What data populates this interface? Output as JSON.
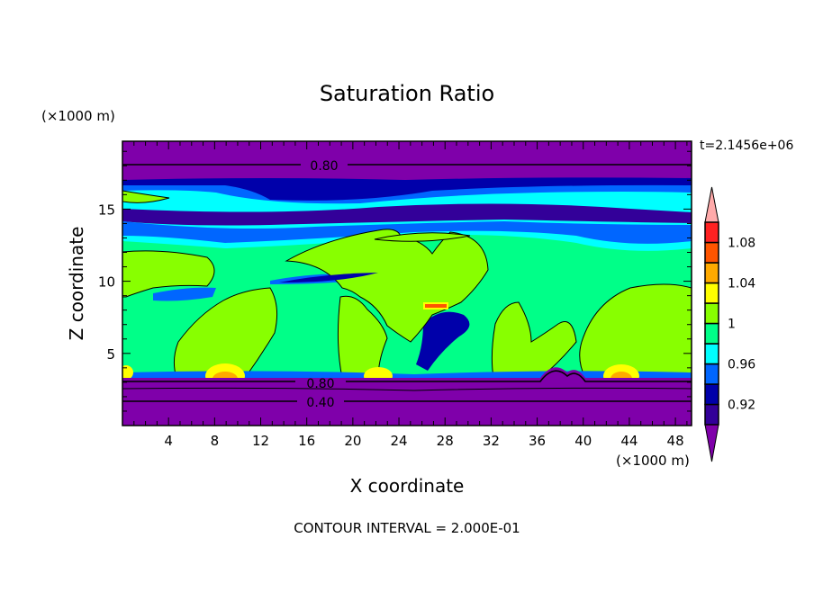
{
  "chart_data": {
    "type": "contour",
    "title": "Saturation Ratio",
    "xlabel": "X coordinate",
    "ylabel": "Z coordinate",
    "x_unit_label": "(×1000 m)",
    "y_unit_label": "(×1000 m)",
    "time_label": "t=2.1456e+06",
    "footer": "CONTOUR INTERVAL = 2.000E-01",
    "xlim": [
      0,
      49.4
    ],
    "ylim": [
      0,
      19.7
    ],
    "x_ticks": [
      "4",
      "8",
      "12",
      "16",
      "20",
      "24",
      "28",
      "32",
      "36",
      "40",
      "44",
      "48"
    ],
    "y_ticks": [
      "5",
      "10",
      "15"
    ],
    "contour_labels": [
      "0.80",
      "0.80",
      "0.40"
    ],
    "colorbar": {
      "levels": [
        0.9,
        0.92,
        0.94,
        0.96,
        0.98,
        1.0,
        1.02,
        1.04,
        1.06,
        1.08,
        1.1
      ],
      "tick_labels": [
        "1.08",
        "1.04",
        "1",
        "0.96",
        "0.92"
      ],
      "colors": [
        "#330099",
        "#0000aa",
        "#0066ff",
        "#00ffff",
        "#00ff88",
        "#88ff00",
        "#ffff00",
        "#ffaa00",
        "#ff5500",
        "#ff2222"
      ],
      "over_color": "#ffaaaa",
      "under_color": "#7f00aa"
    }
  }
}
